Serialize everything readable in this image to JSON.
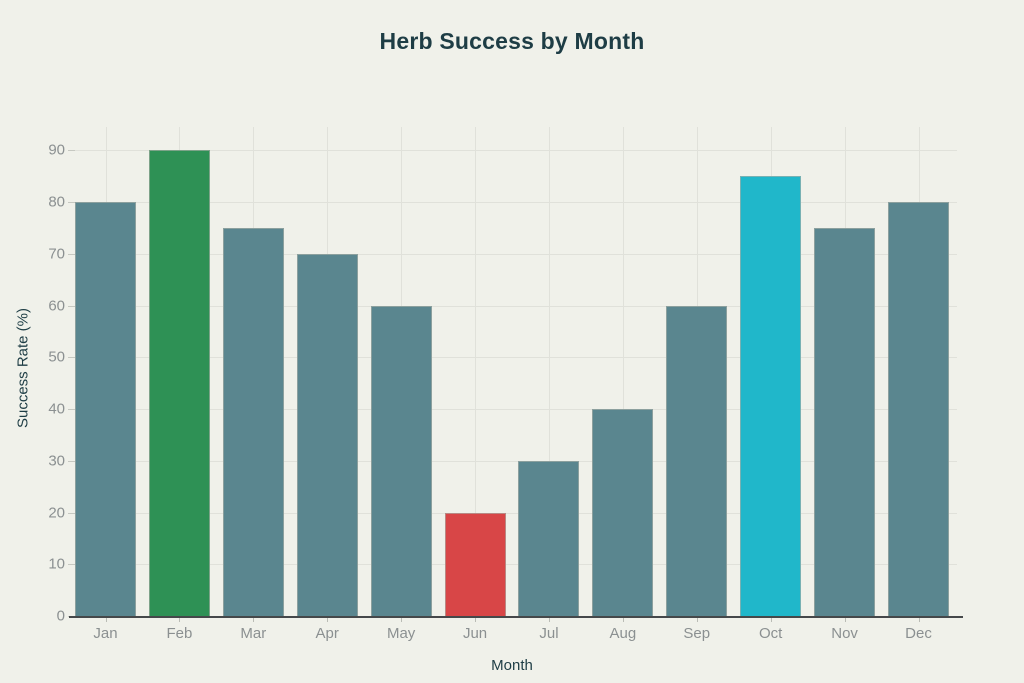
{
  "title": "Herb Success by Month",
  "chart_data": {
    "type": "bar",
    "title": "Herb Success by Month",
    "xlabel": "Month",
    "ylabel": "Success Rate (%)",
    "categories": [
      "Jan",
      "Feb",
      "Mar",
      "Apr",
      "May",
      "Jun",
      "Jul",
      "Aug",
      "Sep",
      "Oct",
      "Nov",
      "Dec"
    ],
    "values": [
      80,
      90,
      75,
      70,
      60,
      20,
      30,
      40,
      60,
      85,
      75,
      80
    ],
    "bar_colors": [
      "#5a868f",
      "#2e9155",
      "#5a868f",
      "#5a868f",
      "#5a868f",
      "#d84647",
      "#5a868f",
      "#5a868f",
      "#5a868f",
      "#20b7ca",
      "#5a868f",
      "#5a868f"
    ],
    "ylim": [
      0,
      94.5
    ],
    "yticks": [
      0,
      10,
      20,
      30,
      40,
      50,
      60,
      70,
      80,
      90
    ],
    "grid": true,
    "legend": null,
    "colors": {
      "background": "#f0f1ea",
      "default_bar": "#5a868f",
      "highlight_green": "#2e9155",
      "highlight_red": "#d84647",
      "highlight_cyan": "#20b7ca",
      "title_text": "#1e3d45",
      "tick_text": "#8b9091",
      "gridline": "#e0e1da",
      "axis_line": "#45484a"
    }
  }
}
